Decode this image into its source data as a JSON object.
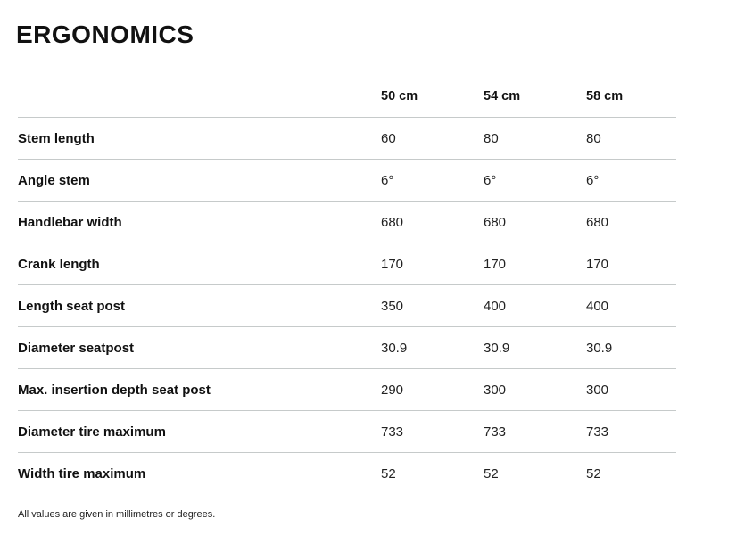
{
  "section": {
    "title": "ERGONOMICS",
    "footnote": "All values are given in millimetres or degrees."
  },
  "table": {
    "columns": [
      "50 cm",
      "54 cm",
      "58 cm"
    ],
    "rows": [
      {
        "label": "Stem length",
        "values": [
          "60",
          "80",
          "80"
        ]
      },
      {
        "label": "Angle stem",
        "values": [
          "6°",
          "6°",
          "6°"
        ]
      },
      {
        "label": "Handlebar width",
        "values": [
          "680",
          "680",
          "680"
        ]
      },
      {
        "label": "Crank length",
        "values": [
          "170",
          "170",
          "170"
        ]
      },
      {
        "label": "Length seat post",
        "values": [
          "350",
          "400",
          "400"
        ]
      },
      {
        "label": "Diameter seatpost",
        "values": [
          "30.9",
          "30.9",
          "30.9"
        ]
      },
      {
        "label": "Max. insertion depth seat post",
        "values": [
          "290",
          "300",
          "300"
        ]
      },
      {
        "label": "Diameter tire maximum",
        "values": [
          "733",
          "733",
          "733"
        ]
      },
      {
        "label": "Width tire maximum",
        "values": [
          "52",
          "52",
          "52"
        ]
      }
    ]
  },
  "colors": {
    "background": "#ffffff",
    "text": "#1a1a1a",
    "divider": "#c6caca"
  }
}
